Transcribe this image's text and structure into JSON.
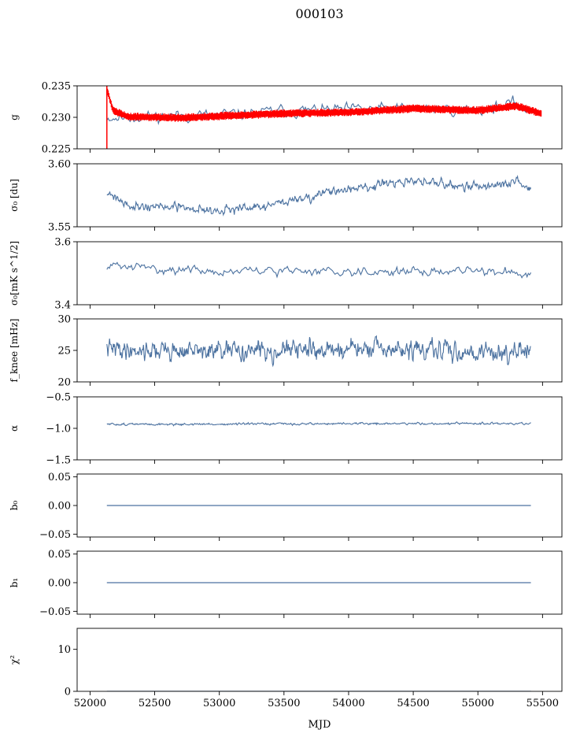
{
  "figure": {
    "title": "000103",
    "xlabel": "MJD"
  },
  "colors": {
    "series": "#4c72a0",
    "gain_overlay": "#ff0000",
    "axis": "#000000"
  },
  "chart_data": [
    {
      "type": "line",
      "ylabel": "g",
      "xlim": [
        51900,
        55650
      ],
      "ylim": [
        0.225,
        0.235
      ],
      "yticks": [
        "0.235",
        "0.230",
        "0.225"
      ],
      "ytick_values": [
        0.235,
        0.23,
        0.225
      ],
      "series": [
        {
          "color": "blue",
          "style": "noisy",
          "x_range": [
            52130,
            55410
          ],
          "points": 330,
          "knots_x": [
            52130,
            52300,
            52700,
            53000,
            53500,
            54000,
            54500,
            55000,
            55300,
            55410
          ],
          "knots_y": [
            0.23,
            0.23,
            0.2303,
            0.2303,
            0.231,
            0.2312,
            0.2314,
            0.2312,
            0.2322,
            0.2308
          ],
          "amplitude": 0.0012,
          "seed": 11
        },
        {
          "color": "red",
          "style": "band",
          "x_range": [
            52130,
            55490
          ],
          "points": 600,
          "knots_x": [
            52130,
            52180,
            52300,
            52700,
            53000,
            53500,
            54000,
            54500,
            55000,
            55300,
            55490
          ],
          "knots_y": [
            0.2345,
            0.231,
            0.2301,
            0.2299,
            0.2302,
            0.2306,
            0.2308,
            0.2314,
            0.2311,
            0.2318,
            0.2306
          ],
          "amplitude": 0.0006,
          "seed": 5,
          "dropout_x": 52130,
          "dropout_y": 0.225
        }
      ]
    },
    {
      "type": "line",
      "ylabel": "σ₀ [du]",
      "xlim": [
        51900,
        55650
      ],
      "ylim": [
        3.55,
        3.6
      ],
      "yticks": [
        "3.60",
        "3.55"
      ],
      "ytick_values": [
        3.6,
        3.55
      ],
      "series": [
        {
          "color": "blue",
          "style": "noisy",
          "x_range": [
            52130,
            55410
          ],
          "points": 700,
          "knots_x": [
            52130,
            52300,
            52700,
            53000,
            53300,
            53600,
            54000,
            54500,
            55000,
            55300,
            55410
          ],
          "knots_y": [
            3.578,
            3.567,
            3.565,
            3.563,
            3.565,
            3.572,
            3.58,
            3.586,
            3.582,
            3.585,
            3.58
          ],
          "amplitude": 0.0045,
          "seed": 21
        }
      ]
    },
    {
      "type": "line",
      "ylabel": "σ₀[mK s^1/2]",
      "xlim": [
        51900,
        55650
      ],
      "ylim": [
        3.4,
        3.6
      ],
      "yticks": [
        "3.6",
        "3.4"
      ],
      "ytick_values": [
        3.6,
        3.4
      ],
      "series": [
        {
          "color": "blue",
          "style": "noisy",
          "x_range": [
            52130,
            55410
          ],
          "points": 330,
          "knots_x": [
            52130,
            52500,
            53000,
            53500,
            54000,
            54500,
            55000,
            55410
          ],
          "knots_y": [
            3.525,
            3.515,
            3.505,
            3.507,
            3.508,
            3.505,
            3.507,
            3.5
          ],
          "amplitude": 0.018,
          "seed": 31
        }
      ]
    },
    {
      "type": "line",
      "ylabel": "f_knee [mHz]",
      "xlim": [
        51900,
        55650
      ],
      "ylim": [
        20,
        30
      ],
      "yticks": [
        "30",
        "25",
        "20"
      ],
      "ytick_values": [
        30,
        25,
        20
      ],
      "series": [
        {
          "color": "blue",
          "style": "noisy",
          "x_range": [
            52130,
            55410
          ],
          "points": 800,
          "knots_x": [
            52130,
            53000,
            54000,
            55000,
            55410
          ],
          "knots_y": [
            25.2,
            24.8,
            25.2,
            24.8,
            24.6
          ],
          "amplitude": 1.9,
          "seed": 41
        }
      ]
    },
    {
      "type": "line",
      "ylabel": "α",
      "xlim": [
        51900,
        55650
      ],
      "ylim": [
        -1.5,
        -0.5
      ],
      "yticks": [
        "−0.5",
        "−1.0",
        "−1.5"
      ],
      "ytick_values": [
        -0.5,
        -1.0,
        -1.5
      ],
      "series": [
        {
          "color": "blue",
          "style": "noisy",
          "x_range": [
            52130,
            55410
          ],
          "points": 700,
          "knots_x": [
            52130,
            53000,
            54000,
            55000,
            55410
          ],
          "knots_y": [
            -0.935,
            -0.935,
            -0.925,
            -0.925,
            -0.925
          ],
          "amplitude": 0.022,
          "seed": 51
        }
      ]
    },
    {
      "type": "line",
      "ylabel": "b₀",
      "xlim": [
        51900,
        55650
      ],
      "ylim": [
        -0.055,
        0.055
      ],
      "yticks": [
        "0.05",
        "0.00",
        "−0.05"
      ],
      "ytick_values": [
        0.05,
        0.0,
        -0.05
      ],
      "series": [
        {
          "color": "blue",
          "style": "flat",
          "x_range": [
            52130,
            55410
          ],
          "value": 0.0
        }
      ]
    },
    {
      "type": "line",
      "ylabel": "b₁",
      "xlim": [
        51900,
        55650
      ],
      "ylim": [
        -0.055,
        0.055
      ],
      "yticks": [
        "0.05",
        "0.00",
        "−0.05"
      ],
      "ytick_values": [
        0.05,
        0.0,
        -0.05
      ],
      "series": [
        {
          "color": "blue",
          "style": "flat",
          "x_range": [
            52130,
            55410
          ],
          "value": 0.0
        }
      ]
    },
    {
      "type": "line",
      "ylabel": "χ²",
      "xlim": [
        51900,
        55650
      ],
      "ylim": [
        0,
        15
      ],
      "yticks": [
        "10",
        "0"
      ],
      "ytick_values": [
        10,
        0
      ],
      "xticks": [
        "52000",
        "52500",
        "53000",
        "53500",
        "54000",
        "54500",
        "55000",
        "55500"
      ],
      "xtick_values": [
        52000,
        52500,
        53000,
        53500,
        54000,
        54500,
        55000,
        55500
      ],
      "series": [
        {
          "color": "blue",
          "style": "flat",
          "x_range": [
            52130,
            55410
          ],
          "value": 0.0
        }
      ]
    }
  ]
}
